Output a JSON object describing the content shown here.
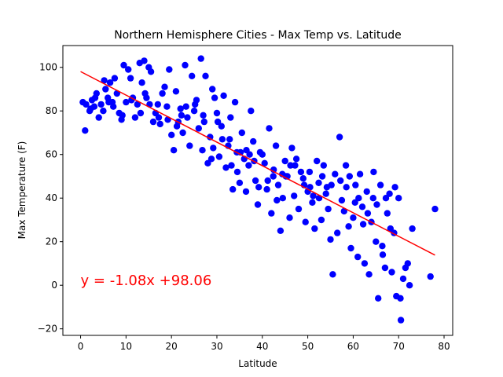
{
  "chart_data": {
    "type": "scatter",
    "title": "Northern Hemisphere Cities - Max Temp vs. Latitude",
    "xlabel": "Latitude",
    "ylabel": "Max Temperature (F)",
    "xlim": [
      -3.9,
      81.9
    ],
    "ylim": [
      -23,
      110
    ],
    "xticks": [
      0,
      10,
      20,
      30,
      40,
      50,
      60,
      70,
      80
    ],
    "yticks": [
      -20,
      0,
      20,
      40,
      60,
      80,
      100
    ],
    "grid": false,
    "point_color": "#0000ff",
    "line_color": "#ff0000",
    "annotation": {
      "text": "y = -1.08x +98.06",
      "color": "#ff0000",
      "x": 0,
      "y": 0
    },
    "regression": {
      "slope": -1.08,
      "intercept": 98.06,
      "x_range": [
        0,
        78
      ]
    },
    "series": [
      {
        "values": [
          [
            0.5,
            84
          ],
          [
            1,
            71
          ],
          [
            2,
            80
          ],
          [
            2.5,
            85
          ],
          [
            3,
            82
          ],
          [
            3.5,
            88
          ],
          [
            4,
            77
          ],
          [
            4.5,
            83
          ],
          [
            5,
            80
          ],
          [
            5.5,
            90
          ],
          [
            6,
            86
          ],
          [
            6.5,
            93
          ],
          [
            7,
            84
          ],
          [
            7.5,
            95
          ],
          [
            8,
            88
          ],
          [
            8.5,
            79
          ],
          [
            9,
            76
          ],
          [
            9.5,
            101
          ],
          [
            10,
            84
          ],
          [
            10.5,
            99
          ],
          [
            11,
            95
          ],
          [
            11.5,
            86
          ],
          [
            12,
            77
          ],
          [
            12.5,
            83
          ],
          [
            13,
            102
          ],
          [
            13.5,
            93
          ],
          [
            14,
            103
          ],
          [
            14.5,
            86
          ],
          [
            15,
            100
          ],
          [
            15.5,
            98
          ],
          [
            16,
            75
          ],
          [
            16.5,
            79
          ],
          [
            17,
            83
          ],
          [
            17.5,
            74
          ],
          [
            18,
            88
          ],
          [
            18.5,
            91
          ],
          [
            19,
            82
          ],
          [
            19.5,
            99
          ],
          [
            20,
            69
          ],
          [
            20.5,
            62
          ],
          [
            21,
            89
          ],
          [
            21.5,
            75
          ],
          [
            22,
            81
          ],
          [
            22.5,
            70
          ],
          [
            23,
            101
          ],
          [
            23.5,
            77
          ],
          [
            24,
            64
          ],
          [
            24.5,
            96
          ],
          [
            25,
            80
          ],
          [
            25.5,
            85
          ],
          [
            26,
            72
          ],
          [
            26.5,
            104
          ],
          [
            27,
            78
          ],
          [
            27.5,
            96
          ],
          [
            28,
            56
          ],
          [
            28.5,
            68
          ],
          [
            29,
            90
          ],
          [
            29.5,
            86
          ],
          [
            30,
            79
          ],
          [
            30.5,
            59
          ],
          [
            31,
            73
          ],
          [
            31.5,
            87
          ],
          [
            32,
            54
          ],
          [
            32.5,
            64
          ],
          [
            33,
            77
          ],
          [
            33.5,
            44
          ],
          [
            34,
            84
          ],
          [
            34.5,
            52
          ],
          [
            35,
            47
          ],
          [
            35.5,
            70
          ],
          [
            36,
            58
          ],
          [
            36.5,
            62
          ],
          [
            37,
            55
          ],
          [
            37.5,
            80
          ],
          [
            38,
            66
          ],
          [
            38.5,
            48
          ],
          [
            39,
            37
          ],
          [
            39.5,
            61
          ],
          [
            40,
            60
          ],
          [
            40.5,
            56
          ],
          [
            41,
            44
          ],
          [
            41.5,
            72
          ],
          [
            42,
            33
          ],
          [
            42.5,
            53
          ],
          [
            43,
            64
          ],
          [
            43.5,
            46
          ],
          [
            44,
            25
          ],
          [
            44.5,
            40
          ],
          [
            45,
            57
          ],
          [
            45.5,
            50
          ],
          [
            46,
            31
          ],
          [
            46.5,
            63
          ],
          [
            47,
            41
          ],
          [
            47.5,
            58
          ],
          [
            48,
            35
          ],
          [
            48.5,
            52
          ],
          [
            49,
            49
          ],
          [
            49.5,
            29
          ],
          [
            50,
            43
          ],
          [
            50.5,
            45
          ],
          [
            51,
            38
          ],
          [
            51.5,
            26
          ],
          [
            52,
            57
          ],
          [
            52.5,
            40
          ],
          [
            53,
            30
          ],
          [
            53.5,
            55
          ],
          [
            54,
            42
          ],
          [
            54.5,
            35
          ],
          [
            55,
            21
          ],
          [
            55.5,
            5
          ],
          [
            56,
            51
          ],
          [
            56.5,
            24
          ],
          [
            57,
            68
          ],
          [
            57.5,
            39
          ],
          [
            58,
            34
          ],
          [
            58.5,
            45
          ],
          [
            59,
            27
          ],
          [
            59.5,
            17
          ],
          [
            60,
            31
          ],
          [
            60.5,
            46
          ],
          [
            61,
            13
          ],
          [
            61.5,
            51
          ],
          [
            62,
            36
          ],
          [
            62.5,
            10
          ],
          [
            63,
            43
          ],
          [
            63.5,
            5
          ],
          [
            64,
            29
          ],
          [
            64.5,
            52
          ],
          [
            65,
            20
          ],
          [
            65.5,
            -6
          ],
          [
            66,
            46
          ],
          [
            66.5,
            14
          ],
          [
            67,
            8
          ],
          [
            67.5,
            33
          ],
          [
            68,
            42
          ],
          [
            68.5,
            6
          ],
          [
            69,
            24
          ],
          [
            69.5,
            -5
          ],
          [
            70,
            40
          ],
          [
            70.5,
            -16
          ],
          [
            71,
            3
          ],
          [
            71.5,
            8
          ],
          [
            72,
            10
          ],
          [
            73,
            26
          ],
          [
            77,
            4
          ],
          [
            78,
            35
          ],
          [
            1.2,
            83
          ],
          [
            3.2,
            86
          ],
          [
            5.2,
            94
          ],
          [
            7.2,
            82
          ],
          [
            9.2,
            78
          ],
          [
            11.2,
            85
          ],
          [
            13.2,
            79
          ],
          [
            15.2,
            83
          ],
          [
            17.2,
            77
          ],
          [
            19.2,
            76
          ],
          [
            21.2,
            73
          ],
          [
            23.2,
            82
          ],
          [
            25.2,
            83
          ],
          [
            27.2,
            75
          ],
          [
            29.2,
            63
          ],
          [
            31.2,
            67
          ],
          [
            33.2,
            55
          ],
          [
            35.2,
            61
          ],
          [
            37.2,
            60
          ],
          [
            39.2,
            45
          ],
          [
            41.2,
            48
          ],
          [
            43.2,
            39
          ],
          [
            45.2,
            50
          ],
          [
            47.2,
            55
          ],
          [
            49.2,
            46
          ],
          [
            51.2,
            41
          ],
          [
            53.2,
            50
          ],
          [
            55.2,
            46
          ],
          [
            57.2,
            48
          ],
          [
            59.2,
            50
          ],
          [
            61.2,
            40
          ],
          [
            63.2,
            33
          ],
          [
            65.2,
            37
          ],
          [
            67.2,
            40
          ],
          [
            69.2,
            45
          ],
          [
            2.2,
            81
          ],
          [
            6.2,
            84
          ],
          [
            14.2,
            88
          ],
          [
            22.2,
            78
          ],
          [
            30.2,
            75
          ],
          [
            38.2,
            57
          ],
          [
            46.2,
            55
          ],
          [
            54.2,
            45
          ],
          [
            62.2,
            28
          ],
          [
            68.2,
            26
          ],
          [
            36.4,
            43
          ],
          [
            44.4,
            51
          ],
          [
            52.4,
            47
          ],
          [
            60.4,
            38
          ],
          [
            66.4,
            18
          ],
          [
            34.4,
            61
          ],
          [
            42.4,
            50
          ],
          [
            50.4,
            52
          ],
          [
            58.4,
            55
          ],
          [
            64.4,
            40
          ],
          [
            70.4,
            -6
          ],
          [
            72.4,
            0
          ],
          [
            26.8,
            62
          ],
          [
            28.8,
            58
          ],
          [
            32.8,
            67
          ]
        ]
      }
    ]
  }
}
